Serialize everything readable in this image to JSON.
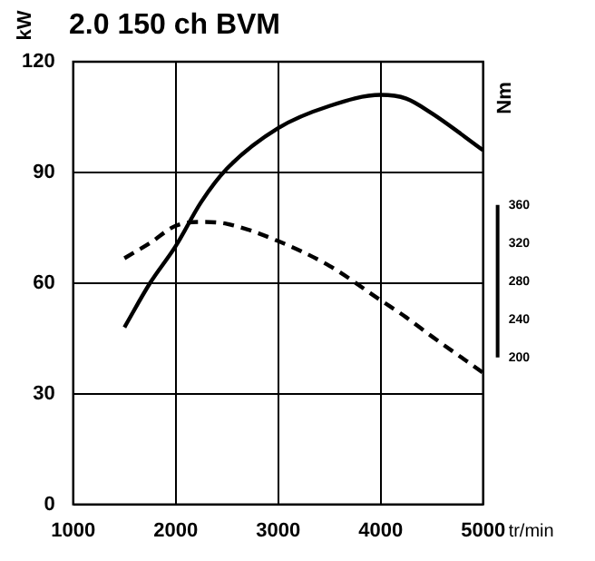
{
  "chart_data": {
    "type": "line",
    "title": "2.0 150 ch BVM",
    "ylabel": "kW",
    "y2label": "Nm",
    "xlabel": "tr/min",
    "x": [
      1500,
      1750,
      2000,
      2250,
      2500,
      3000,
      3500,
      4000,
      4250,
      4500,
      5000
    ],
    "series": [
      {
        "color": "#000000",
        "line_style": "solid",
        "values": [
          48,
          60,
          70,
          82,
          91,
          102,
          108,
          111,
          110,
          106,
          96
        ]
      },
      {
        "color": "#000000",
        "line_style": "dashed",
        "axis": "y2",
        "values": [
          304,
          320,
          338,
          342,
          340,
          322,
          296,
          260,
          242,
          222,
          184
        ]
      }
    ],
    "xlim": [
      1000,
      5000
    ],
    "xticks": [
      1000,
      2000,
      3000,
      4000,
      5000
    ],
    "ylim": [
      0,
      120
    ],
    "yticks": [
      0,
      30,
      60,
      90,
      120
    ],
    "y2lim": [
      46,
      510
    ],
    "y2ticks": [
      200,
      240,
      280,
      320,
      360
    ],
    "grid": true,
    "legend": false,
    "marker": "none"
  }
}
